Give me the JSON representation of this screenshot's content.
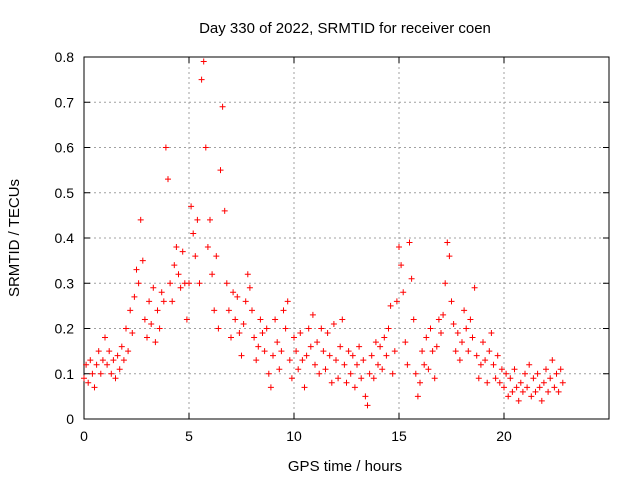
{
  "colors": {
    "series": "#ff0000",
    "axis": "#000000",
    "grid": "#a0a0a0",
    "background": "#ffffff"
  },
  "chart_data": {
    "type": "scatter",
    "title": "Day 330 of 2022, SRMTID for receiver coen",
    "xlabel": "GPS time / hours",
    "ylabel": "SRMTID / TECUs",
    "xlim": [
      0,
      25
    ],
    "ylim": [
      0,
      0.8
    ],
    "xticks": [
      0,
      5,
      10,
      15,
      20
    ],
    "xtick_labels": [
      "0",
      "5",
      "10",
      "15",
      "20"
    ],
    "yticks": [
      0,
      0.1,
      0.2,
      0.3,
      0.4,
      0.5,
      0.6,
      0.7,
      0.8
    ],
    "ytick_labels": [
      "0",
      "0.1",
      "0.2",
      "0.3",
      "0.4",
      "0.5",
      "0.6",
      "0.7",
      "0.8"
    ],
    "grid": true,
    "marker": "+",
    "series": [
      {
        "name": "SRMTID",
        "points": [
          [
            0.0,
            0.09
          ],
          [
            0.1,
            0.12
          ],
          [
            0.2,
            0.08
          ],
          [
            0.3,
            0.13
          ],
          [
            0.4,
            0.1
          ],
          [
            0.5,
            0.07
          ],
          [
            0.6,
            0.12
          ],
          [
            0.7,
            0.15
          ],
          [
            0.8,
            0.1
          ],
          [
            0.9,
            0.13
          ],
          [
            1.0,
            0.18
          ],
          [
            1.1,
            0.12
          ],
          [
            1.2,
            0.15
          ],
          [
            1.3,
            0.1
          ],
          [
            1.4,
            0.13
          ],
          [
            1.5,
            0.09
          ],
          [
            1.6,
            0.14
          ],
          [
            1.7,
            0.11
          ],
          [
            1.8,
            0.16
          ],
          [
            1.9,
            0.13
          ],
          [
            2.0,
            0.2
          ],
          [
            2.1,
            0.15
          ],
          [
            2.2,
            0.24
          ],
          [
            2.3,
            0.19
          ],
          [
            2.4,
            0.27
          ],
          [
            2.5,
            0.33
          ],
          [
            2.6,
            0.3
          ],
          [
            2.7,
            0.44
          ],
          [
            2.8,
            0.35
          ],
          [
            2.9,
            0.22
          ],
          [
            3.0,
            0.18
          ],
          [
            3.1,
            0.26
          ],
          [
            3.2,
            0.21
          ],
          [
            3.3,
            0.29
          ],
          [
            3.4,
            0.17
          ],
          [
            3.5,
            0.24
          ],
          [
            3.6,
            0.2
          ],
          [
            3.7,
            0.28
          ],
          [
            3.8,
            0.26
          ],
          [
            3.9,
            0.6
          ],
          [
            4.0,
            0.53
          ],
          [
            4.1,
            0.3
          ],
          [
            4.2,
            0.26
          ],
          [
            4.3,
            0.34
          ],
          [
            4.4,
            0.38
          ],
          [
            4.5,
            0.32
          ],
          [
            4.6,
            0.29
          ],
          [
            4.7,
            0.37
          ],
          [
            4.8,
            0.3
          ],
          [
            4.9,
            0.22
          ],
          [
            5.0,
            0.3
          ],
          [
            5.1,
            0.47
          ],
          [
            5.2,
            0.41
          ],
          [
            5.3,
            0.36
          ],
          [
            5.4,
            0.44
          ],
          [
            5.5,
            0.3
          ],
          [
            5.6,
            0.75
          ],
          [
            5.7,
            0.79
          ],
          [
            5.8,
            0.6
          ],
          [
            5.9,
            0.38
          ],
          [
            6.0,
            0.44
          ],
          [
            6.1,
            0.32
          ],
          [
            6.2,
            0.24
          ],
          [
            6.3,
            0.36
          ],
          [
            6.4,
            0.2
          ],
          [
            6.5,
            0.55
          ],
          [
            6.6,
            0.69
          ],
          [
            6.7,
            0.46
          ],
          [
            6.8,
            0.3
          ],
          [
            6.9,
            0.24
          ],
          [
            7.0,
            0.18
          ],
          [
            7.1,
            0.28
          ],
          [
            7.2,
            0.22
          ],
          [
            7.3,
            0.27
          ],
          [
            7.4,
            0.19
          ],
          [
            7.5,
            0.14
          ],
          [
            7.6,
            0.21
          ],
          [
            7.7,
            0.26
          ],
          [
            7.8,
            0.32
          ],
          [
            7.9,
            0.29
          ],
          [
            8.0,
            0.24
          ],
          [
            8.1,
            0.18
          ],
          [
            8.2,
            0.13
          ],
          [
            8.3,
            0.16
          ],
          [
            8.4,
            0.22
          ],
          [
            8.5,
            0.19
          ],
          [
            8.6,
            0.15
          ],
          [
            8.7,
            0.2
          ],
          [
            8.8,
            0.1
          ],
          [
            8.9,
            0.07
          ],
          [
            9.0,
            0.14
          ],
          [
            9.1,
            0.22
          ],
          [
            9.2,
            0.17
          ],
          [
            9.3,
            0.11
          ],
          [
            9.4,
            0.15
          ],
          [
            9.5,
            0.24
          ],
          [
            9.6,
            0.2
          ],
          [
            9.7,
            0.26
          ],
          [
            9.8,
            0.13
          ],
          [
            9.9,
            0.09
          ],
          [
            10.0,
            0.18
          ],
          [
            10.1,
            0.15
          ],
          [
            10.2,
            0.11
          ],
          [
            10.3,
            0.19
          ],
          [
            10.4,
            0.13
          ],
          [
            10.5,
            0.07
          ],
          [
            10.6,
            0.14
          ],
          [
            10.7,
            0.2
          ],
          [
            10.8,
            0.16
          ],
          [
            10.9,
            0.23
          ],
          [
            11.0,
            0.12
          ],
          [
            11.1,
            0.17
          ],
          [
            11.2,
            0.1
          ],
          [
            11.3,
            0.2
          ],
          [
            11.4,
            0.15
          ],
          [
            11.5,
            0.11
          ],
          [
            11.6,
            0.19
          ],
          [
            11.7,
            0.14
          ],
          [
            11.8,
            0.08
          ],
          [
            11.9,
            0.21
          ],
          [
            12.0,
            0.13
          ],
          [
            12.1,
            0.09
          ],
          [
            12.2,
            0.16
          ],
          [
            12.3,
            0.22
          ],
          [
            12.4,
            0.12
          ],
          [
            12.5,
            0.08
          ],
          [
            12.6,
            0.15
          ],
          [
            12.7,
            0.1
          ],
          [
            12.8,
            0.14
          ],
          [
            12.9,
            0.07
          ],
          [
            13.0,
            0.12
          ],
          [
            13.1,
            0.16
          ],
          [
            13.2,
            0.09
          ],
          [
            13.3,
            0.13
          ],
          [
            13.4,
            0.05
          ],
          [
            13.5,
            0.03
          ],
          [
            13.6,
            0.1
          ],
          [
            13.7,
            0.14
          ],
          [
            13.8,
            0.09
          ],
          [
            13.9,
            0.17
          ],
          [
            14.0,
            0.12
          ],
          [
            14.1,
            0.16
          ],
          [
            14.2,
            0.11
          ],
          [
            14.3,
            0.18
          ],
          [
            14.4,
            0.14
          ],
          [
            14.5,
            0.2
          ],
          [
            14.6,
            0.25
          ],
          [
            14.7,
            0.1
          ],
          [
            14.8,
            0.15
          ],
          [
            14.9,
            0.26
          ],
          [
            15.0,
            0.38
          ],
          [
            15.1,
            0.34
          ],
          [
            15.2,
            0.28
          ],
          [
            15.3,
            0.17
          ],
          [
            15.4,
            0.12
          ],
          [
            15.5,
            0.39
          ],
          [
            15.6,
            0.31
          ],
          [
            15.7,
            0.22
          ],
          [
            15.8,
            0.1
          ],
          [
            15.9,
            0.05
          ],
          [
            16.0,
            0.08
          ],
          [
            16.1,
            0.15
          ],
          [
            16.2,
            0.12
          ],
          [
            16.3,
            0.18
          ],
          [
            16.4,
            0.11
          ],
          [
            16.5,
            0.2
          ],
          [
            16.6,
            0.15
          ],
          [
            16.7,
            0.09
          ],
          [
            16.8,
            0.16
          ],
          [
            16.9,
            0.22
          ],
          [
            17.0,
            0.19
          ],
          [
            17.1,
            0.23
          ],
          [
            17.2,
            0.3
          ],
          [
            17.3,
            0.39
          ],
          [
            17.4,
            0.36
          ],
          [
            17.5,
            0.26
          ],
          [
            17.6,
            0.21
          ],
          [
            17.7,
            0.15
          ],
          [
            17.8,
            0.19
          ],
          [
            17.9,
            0.13
          ],
          [
            18.0,
            0.17
          ],
          [
            18.1,
            0.24
          ],
          [
            18.2,
            0.2
          ],
          [
            18.3,
            0.15
          ],
          [
            18.4,
            0.22
          ],
          [
            18.5,
            0.18
          ],
          [
            18.6,
            0.29
          ],
          [
            18.7,
            0.14
          ],
          [
            18.8,
            0.09
          ],
          [
            18.9,
            0.12
          ],
          [
            19.0,
            0.17
          ],
          [
            19.1,
            0.13
          ],
          [
            19.2,
            0.08
          ],
          [
            19.3,
            0.15
          ],
          [
            19.4,
            0.19
          ],
          [
            19.5,
            0.12
          ],
          [
            19.6,
            0.09
          ],
          [
            19.7,
            0.14
          ],
          [
            19.8,
            0.08
          ],
          [
            19.9,
            0.11
          ],
          [
            20.0,
            0.07
          ],
          [
            20.1,
            0.1
          ],
          [
            20.2,
            0.05
          ],
          [
            20.3,
            0.09
          ],
          [
            20.4,
            0.06
          ],
          [
            20.5,
            0.11
          ],
          [
            20.6,
            0.07
          ],
          [
            20.7,
            0.04
          ],
          [
            20.8,
            0.08
          ],
          [
            20.9,
            0.06
          ],
          [
            21.0,
            0.1
          ],
          [
            21.1,
            0.07
          ],
          [
            21.2,
            0.12
          ],
          [
            21.3,
            0.05
          ],
          [
            21.4,
            0.09
          ],
          [
            21.5,
            0.06
          ],
          [
            21.6,
            0.1
          ],
          [
            21.7,
            0.07
          ],
          [
            21.8,
            0.04
          ],
          [
            21.9,
            0.08
          ],
          [
            22.0,
            0.11
          ],
          [
            22.1,
            0.06
          ],
          [
            22.2,
            0.09
          ],
          [
            22.3,
            0.13
          ],
          [
            22.4,
            0.07
          ],
          [
            22.5,
            0.1
          ],
          [
            22.6,
            0.06
          ],
          [
            22.7,
            0.11
          ],
          [
            22.8,
            0.08
          ]
        ]
      }
    ]
  }
}
